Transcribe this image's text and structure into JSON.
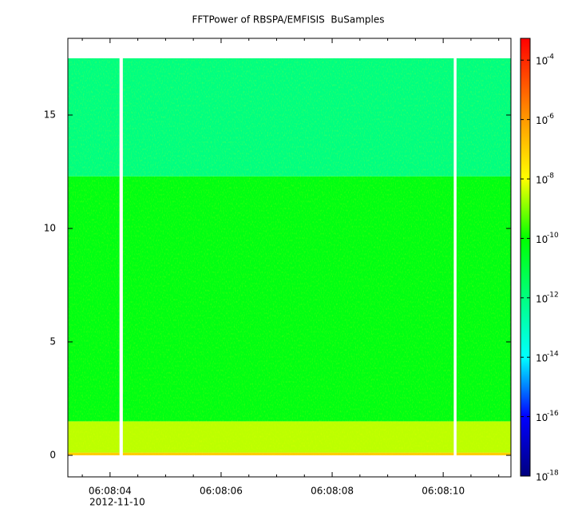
{
  "chart_data": {
    "type": "spectrogram",
    "title": "FFTPower of RBSPA/EMFISIS  BuSamples",
    "x_date_label": "2012-11-10",
    "xlim": [
      3.24,
      11.22
    ],
    "xticks": [
      {
        "value": 4,
        "label": "06:08:04"
      },
      {
        "value": 6,
        "label": "06:08:06"
      },
      {
        "value": 8,
        "label": "06:08:08"
      },
      {
        "value": 10,
        "label": "06:08:10"
      }
    ],
    "xminorticks": [
      3.5,
      4.5,
      5,
      5.5,
      6.5,
      7,
      7.5,
      8.5,
      9,
      9.5,
      10.5,
      11
    ],
    "ylim": [
      -0.95,
      18.38
    ],
    "yticks": [
      0,
      5,
      10,
      15
    ],
    "segments": [
      [
        3.24,
        4.17
      ],
      [
        4.23,
        10.19
      ],
      [
        10.24,
        11.22
      ]
    ],
    "bands": [
      {
        "bins": [
          0,
          0.12
        ],
        "value": 1e-07
      },
      {
        "bins": [
          0.12,
          1.5
        ],
        "value": 3e-09
      },
      {
        "bins": [
          1.5,
          12.3
        ],
        "value": 5e-11
      },
      {
        "bins": [
          12.3,
          17.5
        ],
        "value": 1e-12
      }
    ],
    "zlog": true,
    "zlim": [
      1e-18,
      0.00054
    ],
    "zticks": [
      {
        "value": 0.0001,
        "label": "10",
        "exponent": "-4"
      },
      {
        "value": 1e-06,
        "label": "10",
        "exponent": "-6"
      },
      {
        "value": 1e-08,
        "label": "10",
        "exponent": "-8"
      },
      {
        "value": 1e-10,
        "label": "10",
        "exponent": "-10"
      },
      {
        "value": 1e-12,
        "label": "10",
        "exponent": "-12"
      },
      {
        "value": 1e-14,
        "label": "10",
        "exponent": "-14"
      },
      {
        "value": 1e-16,
        "label": "10",
        "exponent": "-16"
      },
      {
        "value": 1e-18,
        "label": "10",
        "exponent": "-18"
      }
    ],
    "colormap": [
      {
        "value": 1e-18,
        "color": "#00007f"
      },
      {
        "value": 1e-16,
        "color": "#0000ff"
      },
      {
        "value": 1e-14,
        "color": "#00ffff"
      },
      {
        "value": 1e-10,
        "color": "#00ff00"
      },
      {
        "value": 1e-08,
        "color": "#ffff00"
      },
      {
        "value": 1e-06,
        "color": "#ff9900"
      },
      {
        "value": 0.00054,
        "color": "#ff0000"
      }
    ]
  }
}
